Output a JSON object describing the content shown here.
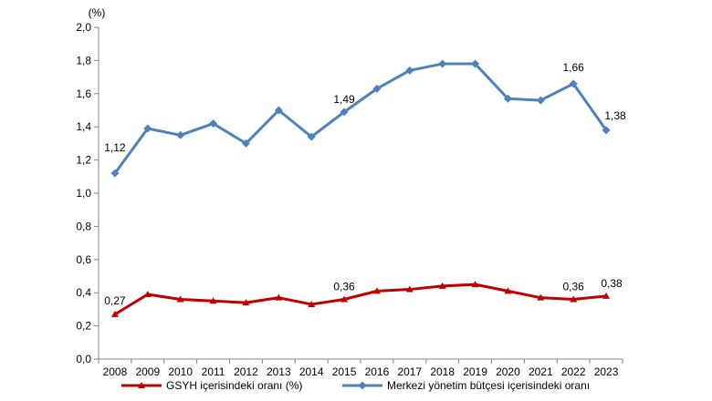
{
  "chart_data": {
    "type": "line",
    "y_unit_label": "(%)",
    "x": [
      "2008",
      "2009",
      "2010",
      "2011",
      "2012",
      "2013",
      "2014",
      "2015",
      "2016",
      "2017",
      "2018",
      "2019",
      "2020",
      "2021",
      "2022",
      "2023"
    ],
    "ylim": [
      0,
      2.0
    ],
    "y_ticks": [
      "0,0",
      "0,2",
      "0,4",
      "0,6",
      "0,8",
      "1,0",
      "1,2",
      "1,4",
      "1,6",
      "1,8",
      "2,0"
    ],
    "grid": false,
    "legend_position": "bottom",
    "series": [
      {
        "name": "GSYH içerisindeki oranı (%)",
        "color": "#C00000",
        "values": [
          0.27,
          0.39,
          0.36,
          0.35,
          0.34,
          0.37,
          0.33,
          0.36,
          0.41,
          0.42,
          0.44,
          0.45,
          0.41,
          0.37,
          0.36,
          0.38
        ]
      },
      {
        "name": "Merkezi yönetim bütçesi içerisindeki oranı",
        "color": "#4F81BD",
        "values": [
          1.12,
          1.39,
          1.35,
          1.42,
          1.3,
          1.5,
          1.34,
          1.49,
          1.63,
          1.74,
          1.78,
          1.78,
          1.57,
          1.56,
          1.66,
          1.38
        ]
      }
    ],
    "data_labels": [
      {
        "series": 1,
        "index": 0,
        "text": "1,12"
      },
      {
        "series": 1,
        "index": 7,
        "text": "1,49"
      },
      {
        "series": 1,
        "index": 14,
        "text": "1,66"
      },
      {
        "series": 1,
        "index": 15,
        "text": "1,38"
      },
      {
        "series": 0,
        "index": 0,
        "text": "0,27"
      },
      {
        "series": 0,
        "index": 7,
        "text": "0,36"
      },
      {
        "series": 0,
        "index": 14,
        "text": "0,36"
      },
      {
        "series": 0,
        "index": 15,
        "text": "0,38"
      }
    ]
  }
}
